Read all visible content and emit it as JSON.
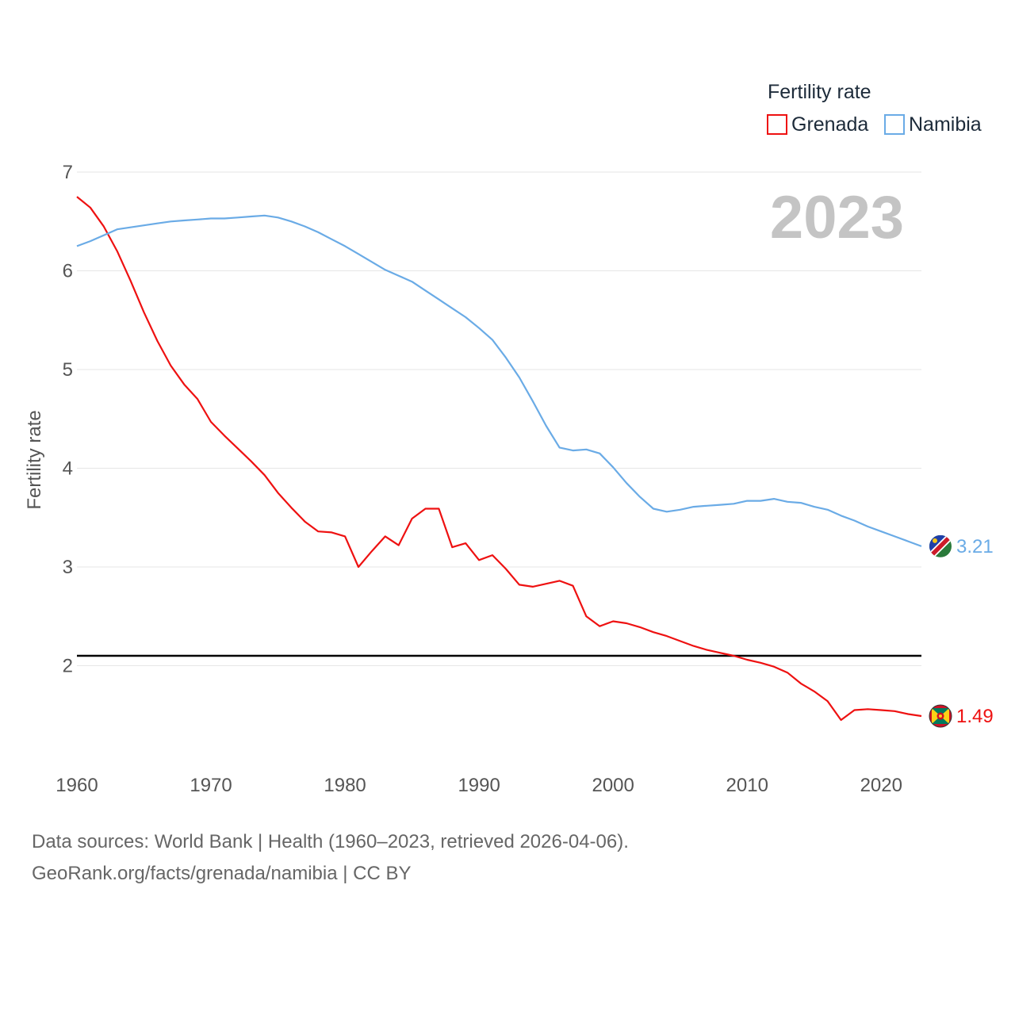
{
  "chart_data": {
    "type": "line",
    "title": "",
    "legend_title": "Fertility rate",
    "ylabel": "Fertility rate",
    "xlabel": "",
    "year_label": "2023",
    "xlim": [
      1960,
      2023
    ],
    "ylim": [
      1.0,
      7.0
    ],
    "x_ticks": [
      1960,
      1970,
      1980,
      1990,
      2000,
      2010,
      2020
    ],
    "y_ticks": [
      2,
      3,
      4,
      5,
      6,
      7
    ],
    "reference_line": {
      "value": 2.1,
      "color": "#000000"
    },
    "x": [
      1960,
      1961,
      1962,
      1963,
      1964,
      1965,
      1966,
      1967,
      1968,
      1969,
      1970,
      1971,
      1972,
      1973,
      1974,
      1975,
      1976,
      1977,
      1978,
      1979,
      1980,
      1981,
      1982,
      1983,
      1984,
      1985,
      1986,
      1987,
      1988,
      1989,
      1990,
      1991,
      1992,
      1993,
      1994,
      1995,
      1996,
      1997,
      1998,
      1999,
      2000,
      2001,
      2002,
      2003,
      2004,
      2005,
      2006,
      2007,
      2008,
      2009,
      2010,
      2011,
      2012,
      2013,
      2014,
      2015,
      2016,
      2017,
      2018,
      2019,
      2020,
      2021,
      2022,
      2023
    ],
    "series": [
      {
        "name": "Grenada",
        "color": "#ee1111",
        "end_label": "1.49",
        "values": [
          6.75,
          6.64,
          6.45,
          6.2,
          5.9,
          5.58,
          5.29,
          5.04,
          4.85,
          4.7,
          4.47,
          4.33,
          4.2,
          4.07,
          3.93,
          3.75,
          3.6,
          3.46,
          3.36,
          3.35,
          3.31,
          3.0,
          3.16,
          3.31,
          3.22,
          3.49,
          3.59,
          3.59,
          3.2,
          3.24,
          3.07,
          3.12,
          2.98,
          2.82,
          2.8,
          2.83,
          2.86,
          2.81,
          2.5,
          2.4,
          2.45,
          2.43,
          2.39,
          2.34,
          2.3,
          2.25,
          2.2,
          2.16,
          2.13,
          2.1,
          2.06,
          2.03,
          1.99,
          1.93,
          1.82,
          1.74,
          1.64,
          1.45,
          1.55,
          1.56,
          1.55,
          1.54,
          1.51,
          1.49
        ]
      },
      {
        "name": "Namibia",
        "color": "#6aabe6",
        "end_label": "3.21",
        "values": [
          6.25,
          6.3,
          6.36,
          6.42,
          6.44,
          6.46,
          6.48,
          6.5,
          6.51,
          6.52,
          6.53,
          6.53,
          6.54,
          6.55,
          6.56,
          6.54,
          6.5,
          6.45,
          6.39,
          6.32,
          6.25,
          6.17,
          6.09,
          6.01,
          5.95,
          5.89,
          5.8,
          5.71,
          5.62,
          5.53,
          5.42,
          5.3,
          5.12,
          4.92,
          4.68,
          4.43,
          4.21,
          4.18,
          4.19,
          4.15,
          4.01,
          3.85,
          3.71,
          3.59,
          3.56,
          3.58,
          3.61,
          3.62,
          3.63,
          3.64,
          3.67,
          3.67,
          3.69,
          3.66,
          3.65,
          3.61,
          3.58,
          3.52,
          3.47,
          3.41,
          3.36,
          3.31,
          3.26,
          3.21
        ]
      }
    ]
  },
  "footer": {
    "line1": "Data sources: World Bank | Health (1960–2023, retrieved 2026-04-06).",
    "line2": "GeoRank.org/facts/grenada/namibia | CC BY"
  },
  "icons": {
    "grenada": "grenada-flag-icon",
    "namibia": "namibia-flag-icon"
  }
}
